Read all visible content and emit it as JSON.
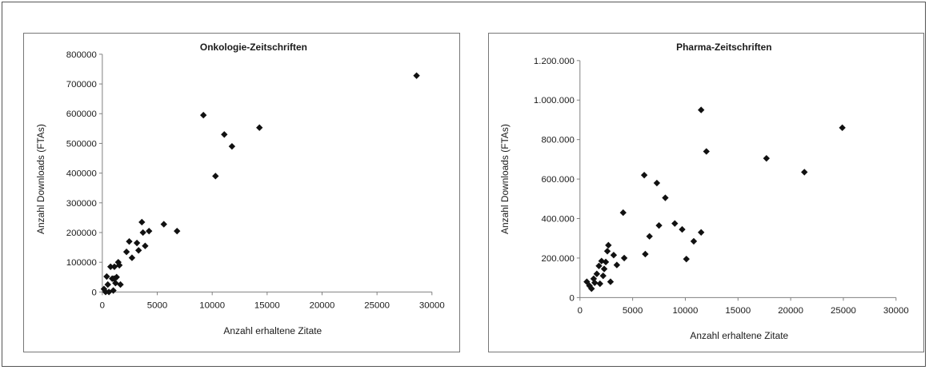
{
  "chart_data": [
    {
      "type": "scatter",
      "title": "Onkologie-Zeitschriften",
      "xlabel": "Anzahl erhaltene Zitate",
      "ylabel": "Anzahl Downloads (FTAs)",
      "xlim": [
        0,
        30000
      ],
      "ylim": [
        0,
        800000
      ],
      "xticks": [
        0,
        5000,
        10000,
        15000,
        20000,
        25000,
        30000
      ],
      "yticks": [
        0,
        100000,
        200000,
        300000,
        400000,
        500000,
        600000,
        700000,
        800000
      ],
      "xtick_labels": [
        "0",
        "5000",
        "10000",
        "15000",
        "20000",
        "25000",
        "30000"
      ],
      "ytick_labels": [
        "0",
        "100000",
        "200000",
        "300000",
        "400000",
        "500000",
        "600000",
        "700000",
        "800000"
      ],
      "grid": false,
      "marker": "diamond",
      "series": [
        {
          "points": [
            [
              150,
              10000
            ],
            [
              300,
              0
            ],
            [
              400,
              52000
            ],
            [
              500,
              25000
            ],
            [
              600,
              0
            ],
            [
              750,
              85000
            ],
            [
              900,
              45000
            ],
            [
              1000,
              5000
            ],
            [
              1050,
              45000
            ],
            [
              1100,
              85000
            ],
            [
              1200,
              30000
            ],
            [
              1300,
              50000
            ],
            [
              1450,
              100000
            ],
            [
              1550,
              90000
            ],
            [
              1650,
              25000
            ],
            [
              2200,
              135000
            ],
            [
              2450,
              170000
            ],
            [
              2700,
              115000
            ],
            [
              3150,
              165000
            ],
            [
              3300,
              140000
            ],
            [
              3600,
              235000
            ],
            [
              3700,
              200000
            ],
            [
              3900,
              155000
            ],
            [
              4250,
              205000
            ],
            [
              5600,
              228000
            ],
            [
              6800,
              205000
            ],
            [
              9200,
              595000
            ],
            [
              10300,
              390000
            ],
            [
              11100,
              530000
            ],
            [
              11800,
              490000
            ],
            [
              14300,
              553000
            ],
            [
              28600,
              728000
            ]
          ]
        }
      ]
    },
    {
      "type": "scatter",
      "title": "Pharma-Zeitschriften",
      "xlabel": "Anzahl erhaltene Zitate",
      "ylabel": "Anzahl Downloads (FTAs)",
      "xlim": [
        0,
        30000
      ],
      "ylim": [
        0,
        1200000
      ],
      "xticks": [
        0,
        5000,
        10000,
        15000,
        20000,
        25000,
        30000
      ],
      "yticks": [
        0,
        200000,
        400000,
        600000,
        800000,
        1000000,
        1200000
      ],
      "xtick_labels": [
        "0",
        "5000",
        "10000",
        "15000",
        "20000",
        "25000",
        "30000"
      ],
      "ytick_labels": [
        "0",
        "200.000",
        "400.000",
        "600.000",
        "800.000",
        "1.000.000",
        "1.200.000"
      ],
      "grid": false,
      "marker": "diamond",
      "series": [
        {
          "points": [
            [
              650,
              80000
            ],
            [
              900,
              60000
            ],
            [
              1100,
              45000
            ],
            [
              1300,
              95000
            ],
            [
              1400,
              75000
            ],
            [
              1600,
              120000
            ],
            [
              1800,
              160000
            ],
            [
              1900,
              70000
            ],
            [
              2050,
              185000
            ],
            [
              2200,
              110000
            ],
            [
              2300,
              145000
            ],
            [
              2450,
              180000
            ],
            [
              2600,
              235000
            ],
            [
              2700,
              265000
            ],
            [
              2900,
              80000
            ],
            [
              3200,
              215000
            ],
            [
              3500,
              165000
            ],
            [
              4100,
              430000
            ],
            [
              4200,
              200000
            ],
            [
              6100,
              620000
            ],
            [
              6200,
              220000
            ],
            [
              6600,
              310000
            ],
            [
              7300,
              580000
            ],
            [
              7500,
              365000
            ],
            [
              8100,
              505000
            ],
            [
              9000,
              375000
            ],
            [
              9700,
              345000
            ],
            [
              10100,
              195000
            ],
            [
              10800,
              285000
            ],
            [
              11500,
              950000
            ],
            [
              11500,
              330000
            ],
            [
              12000,
              740000
            ],
            [
              17700,
              705000
            ],
            [
              21300,
              635000
            ],
            [
              24900,
              860000
            ]
          ]
        }
      ]
    }
  ]
}
